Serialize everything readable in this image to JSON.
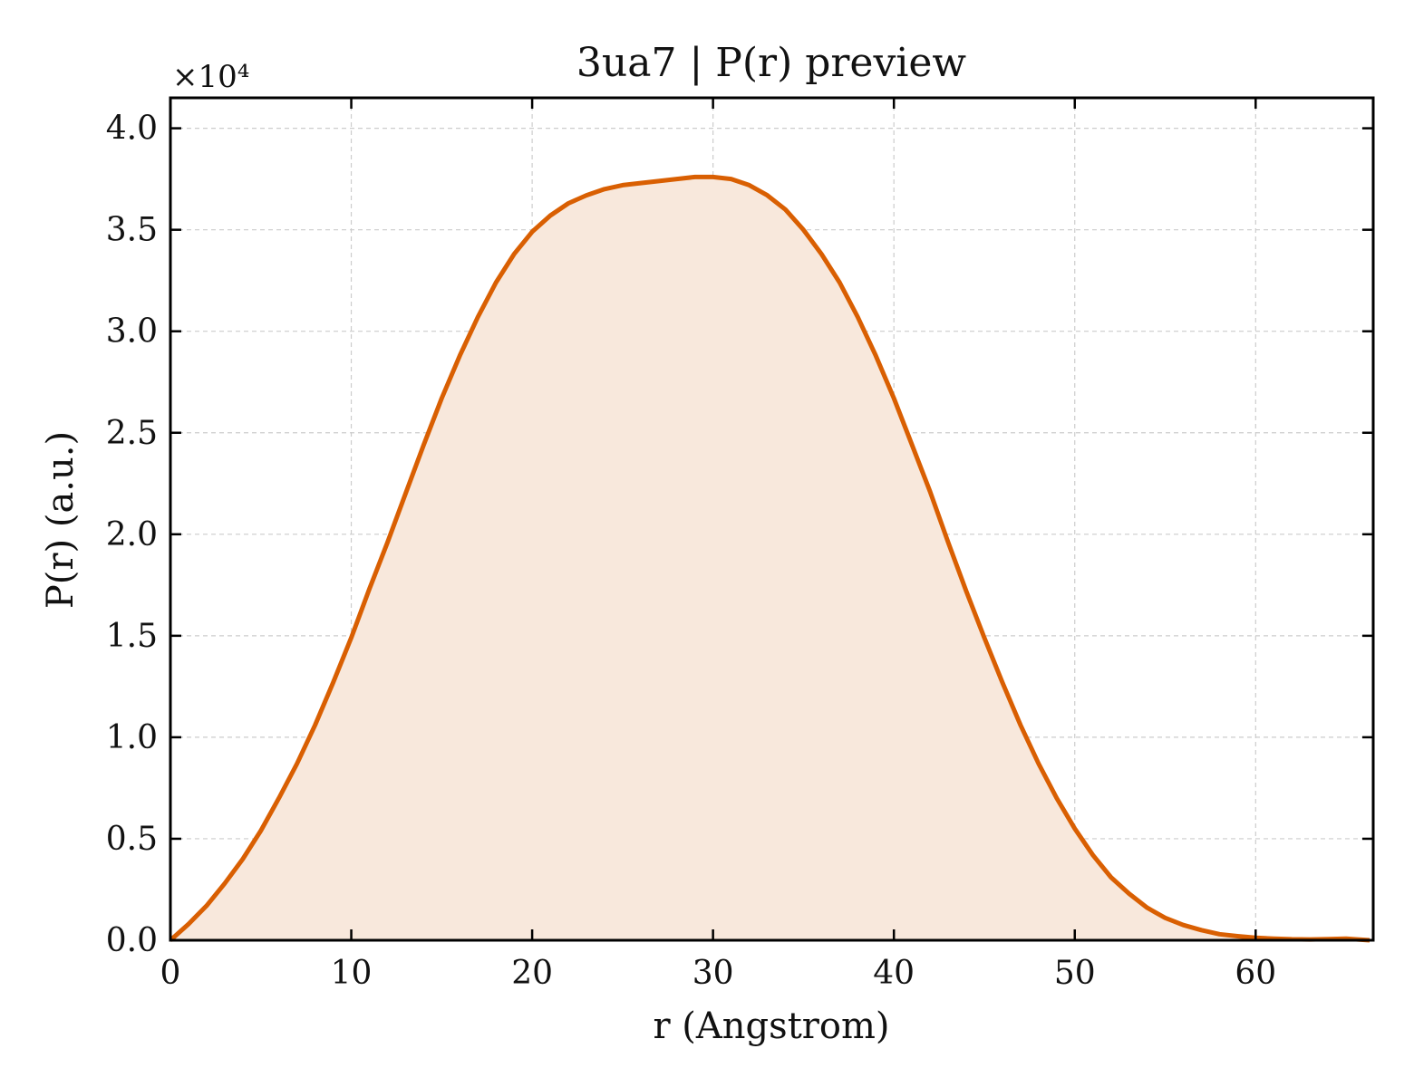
{
  "chart_data": {
    "type": "area",
    "title": "3ua7 | P(r) preview",
    "xlabel": "r (Angstrom)",
    "ylabel": "P(r) (a.u.)",
    "y_scale_label": "×10⁴",
    "xlim": [
      0,
      66.5
    ],
    "ylim": [
      0,
      4.15
    ],
    "y_multiplier": 10000,
    "xticks": [
      0,
      10,
      20,
      30,
      40,
      50,
      60
    ],
    "xtick_labels": [
      "0",
      "10",
      "20",
      "30",
      "40",
      "50",
      "60"
    ],
    "yticks": [
      0,
      0.5,
      1.0,
      1.5,
      2.0,
      2.5,
      3.0,
      3.5,
      4.0
    ],
    "ytick_labels": [
      "0.0",
      "0.5",
      "1.0",
      "1.5",
      "2.0",
      "2.5",
      "3.0",
      "3.5",
      "4.0"
    ],
    "grid": true,
    "legend": "none",
    "colors": {
      "line": "#d95f02",
      "fill": "#f8e8dc",
      "grid": "#cccccc",
      "axis": "#000000"
    },
    "series": [
      {
        "x": [
          0,
          1,
          2,
          3,
          4,
          5,
          6,
          7,
          8,
          9,
          10,
          11,
          12,
          13,
          14,
          15,
          16,
          17,
          18,
          19,
          20,
          21,
          22,
          23,
          24,
          25,
          26,
          27,
          28,
          29,
          30,
          31,
          32,
          33,
          34,
          35,
          36,
          37,
          38,
          39,
          40,
          41,
          42,
          43,
          44,
          45,
          46,
          47,
          48,
          49,
          50,
          51,
          52,
          53,
          54,
          55,
          56,
          57,
          58,
          59,
          60,
          61,
          62,
          63,
          64,
          65,
          66.3
        ],
        "values": [
          0.0,
          0.08,
          0.17,
          0.28,
          0.4,
          0.54,
          0.7,
          0.87,
          1.06,
          1.27,
          1.49,
          1.73,
          1.96,
          2.2,
          2.44,
          2.67,
          2.88,
          3.07,
          3.24,
          3.38,
          3.49,
          3.57,
          3.63,
          3.67,
          3.7,
          3.72,
          3.73,
          3.74,
          3.75,
          3.76,
          3.76,
          3.75,
          3.72,
          3.67,
          3.6,
          3.5,
          3.38,
          3.24,
          3.07,
          2.88,
          2.67,
          2.44,
          2.21,
          1.96,
          1.72,
          1.49,
          1.27,
          1.06,
          0.87,
          0.7,
          0.55,
          0.42,
          0.31,
          0.23,
          0.16,
          0.11,
          0.075,
          0.05,
          0.03,
          0.02,
          0.012,
          0.008,
          0.005,
          0.004,
          0.006,
          0.008,
          0.0
        ]
      }
    ]
  }
}
